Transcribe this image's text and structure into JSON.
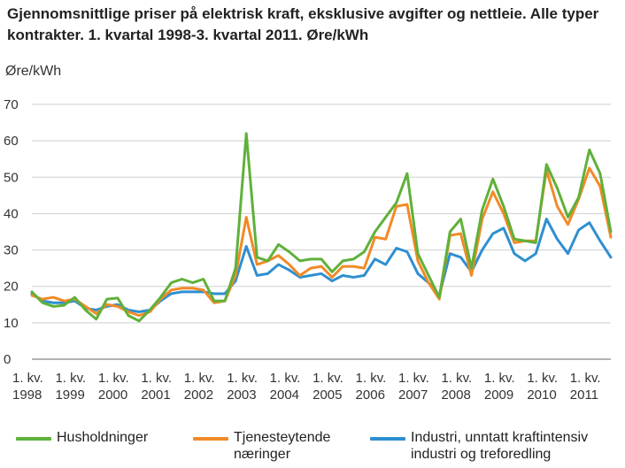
{
  "title": "Gjennomsnittlige priser på elektrisk kraft, eksklusive avgifter og nettleie. Alle typer kontrakter. 1. kvartal 1998-3. kvartal 2011. Øre/kWh",
  "y_unit": "Øre/kWh",
  "chart_data": {
    "type": "line",
    "title": "Gjennomsnittlige priser på elektrisk kraft, eksklusive avgifter og nettleie. Alle typer kontrakter. 1. kvartal 1998-3. kvartal 2011. Øre/kWh",
    "ylabel": "Øre/kWh",
    "xlabel": "",
    "ylim": [
      0,
      70
    ],
    "yticks": [
      0,
      10,
      20,
      30,
      40,
      50,
      60,
      70
    ],
    "grid": true,
    "legend": "bottom",
    "x_tick_labels": [
      "1. kv. 1998",
      "1. kv. 1999",
      "1. kv. 2000",
      "1. kv. 2001",
      "1. kv. 2002",
      "1. kv. 2003",
      "1. kv. 2004",
      "1. kv. 2005",
      "1. kv. 2006",
      "1. kv. 2007",
      "1. kv. 2008",
      "1. kv. 2009",
      "1. kv. 2010",
      "1. kv. 2011"
    ],
    "x": [
      "1998K1",
      "1998K2",
      "1998K3",
      "1998K4",
      "1999K1",
      "1999K2",
      "1999K3",
      "1999K4",
      "2000K1",
      "2000K2",
      "2000K3",
      "2000K4",
      "2001K1",
      "2001K2",
      "2001K3",
      "2001K4",
      "2002K1",
      "2002K2",
      "2002K3",
      "2002K4",
      "2003K1",
      "2003K2",
      "2003K3",
      "2003K4",
      "2004K1",
      "2004K2",
      "2004K3",
      "2004K4",
      "2005K1",
      "2005K2",
      "2005K3",
      "2005K4",
      "2006K1",
      "2006K2",
      "2006K3",
      "2006K4",
      "2007K1",
      "2007K2",
      "2007K3",
      "2007K4",
      "2008K1",
      "2008K2",
      "2008K3",
      "2008K4",
      "2009K1",
      "2009K2",
      "2009K3",
      "2009K4",
      "2010K1",
      "2010K2",
      "2010K3",
      "2010K4",
      "2011K1",
      "2011K2",
      "2011K3"
    ],
    "series": [
      {
        "name": "Husholdninger",
        "color": "#5fb13a",
        "values": [
          18.5,
          15.5,
          14.5,
          14.8,
          17.0,
          13.5,
          11.0,
          16.5,
          16.8,
          12.0,
          10.5,
          13.5,
          17.0,
          21.0,
          22.0,
          21.0,
          22.0,
          16.0,
          16.0,
          25.0,
          62.0,
          28.0,
          27.0,
          31.5,
          29.5,
          27.0,
          27.5,
          27.5,
          24.0,
          27.0,
          27.5,
          29.5,
          35.0,
          39.0,
          43.0,
          51.0,
          29.0,
          23.0,
          17.0,
          35.0,
          38.5,
          25.0,
          41.0,
          49.5,
          42.0,
          33.0,
          32.5,
          32.0,
          53.5,
          47.0,
          39.0,
          44.5,
          57.5,
          51.0,
          35.0
        ]
      },
      {
        "name": "Tjenesteytende\nnæringer",
        "color": "#f28a27",
        "values": [
          17.5,
          16.5,
          17.0,
          16.0,
          16.5,
          14.5,
          12.5,
          15.0,
          14.5,
          13.0,
          12.0,
          13.0,
          16.5,
          19.0,
          19.5,
          19.5,
          19.0,
          15.5,
          16.0,
          23.0,
          39.0,
          26.0,
          27.0,
          28.5,
          26.0,
          23.0,
          25.0,
          25.5,
          22.5,
          25.5,
          25.5,
          25.0,
          33.5,
          33.0,
          42.0,
          42.5,
          27.0,
          21.0,
          16.5,
          34.0,
          34.5,
          23.0,
          38.5,
          46.0,
          40.0,
          32.0,
          32.5,
          32.5,
          52.0,
          42.0,
          37.0,
          44.0,
          52.5,
          47.5,
          33.5
        ]
      },
      {
        "name": "Industri, unntatt kraftintensiv\nindustri og treforedling",
        "color": "#2e8fd1",
        "values": [
          18.0,
          16.0,
          15.5,
          15.5,
          16.0,
          14.0,
          13.5,
          14.5,
          15.0,
          13.5,
          13.0,
          13.5,
          16.0,
          18.0,
          18.5,
          18.5,
          18.5,
          18.0,
          18.0,
          21.5,
          31.0,
          23.0,
          23.5,
          26.0,
          24.5,
          22.5,
          23.0,
          23.5,
          21.5,
          23.0,
          22.5,
          23.0,
          27.5,
          26.0,
          30.5,
          29.5,
          23.5,
          21.0,
          17.5,
          29.0,
          28.0,
          24.0,
          30.0,
          34.5,
          36.0,
          29.0,
          27.0,
          29.0,
          38.5,
          33.0,
          29.0,
          35.5,
          37.5,
          32.5,
          28.0
        ]
      }
    ]
  }
}
